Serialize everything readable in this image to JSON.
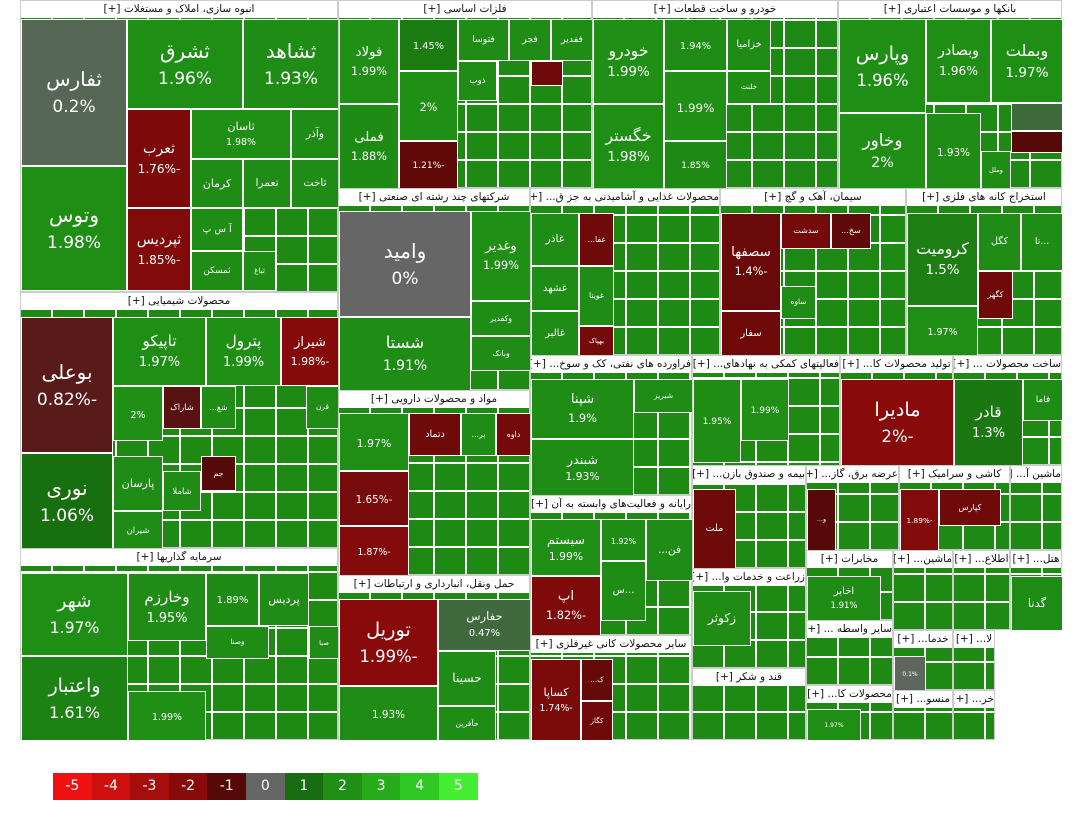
{
  "chart_data": {
    "type": "treemap",
    "legend": {
      "ticks": [
        -5,
        -4,
        -3,
        -2,
        -1,
        0,
        1,
        2,
        3,
        4,
        5
      ],
      "colors": [
        "#ee1111",
        "#cc0f0f",
        "#a80d0d",
        "#880a0a",
        "#560909",
        "#666666",
        "#186d10",
        "#1f8f15",
        "#27aa1b",
        "#30c822",
        "#44ee33"
      ]
    },
    "sectors": [
      {
        "title": "انبوه سازی، املاک و مستغلات [+]",
        "tiles": [
          {
            "name": "ثفارس",
            "value": 0.2,
            "value_label": "0.2%"
          },
          {
            "name": "وتوس",
            "value": 1.98,
            "value_label": "1.98%"
          },
          {
            "name": "ثشرق",
            "value": 1.96,
            "value_label": "1.96%"
          },
          {
            "name": "ثشاهد",
            "value": 1.93,
            "value_label": "1.93%"
          },
          {
            "name": "ثعرب",
            "value": -1.76,
            "value_label": "-1.76%"
          },
          {
            "name": "ثاسان",
            "value": 1.98,
            "value_label": "1.98%"
          },
          {
            "name": "وآذر",
            "value": 1.9
          },
          {
            "name": "کرمان",
            "value": 1.9
          },
          {
            "name": "تعمرا",
            "value": 1.9
          },
          {
            "name": "ثاخت",
            "value": 1.9
          },
          {
            "name": "ثپردیس",
            "value": -1.85,
            "value_label": "-1.85%"
          },
          {
            "name": "آ س پ",
            "value": 1.9
          },
          {
            "name": "ثمسکن",
            "value": 1.9
          },
          {
            "name": "ثباغ",
            "value": 1.9
          }
        ]
      },
      {
        "title": "محصولات شیمیایی [+]",
        "tiles": [
          {
            "name": "بوعلی",
            "value": -0.82,
            "value_label": "-0.82%"
          },
          {
            "name": "نوری",
            "value": 1.06,
            "value_label": "1.06%"
          },
          {
            "name": "تاپیکو",
            "value": 1.97,
            "value_label": "1.97%"
          },
          {
            "name": "پترول",
            "value": 1.99,
            "value_label": "1.99%"
          },
          {
            "name": "شیراز",
            "value": -1.98,
            "value_label": "-1.98%"
          },
          {
            "value": 2,
            "value_label": "2%"
          },
          {
            "name": "شاراک",
            "value": -0.9
          },
          {
            "name": "شغ...",
            "value": 1.9
          },
          {
            "name": "قرن",
            "value": 1.9
          },
          {
            "name": "پارسان",
            "value": 1.9
          },
          {
            "name": "شیران",
            "value": 1.9
          },
          {
            "name": "شاملا",
            "value": 1.9
          },
          {
            "name": "جم",
            "value": -1
          }
        ]
      },
      {
        "title": "سرمایه گذاریها [+]",
        "tiles": [
          {
            "name": "شهر",
            "value": 1.97,
            "value_label": "1.97%"
          },
          {
            "name": "واعتبار",
            "value": 1.61,
            "value_label": "1.61%"
          },
          {
            "name": "وخارزم",
            "value": 1.95,
            "value_label": "1.95%"
          },
          {
            "value": 1.89,
            "value_label": "1.89%"
          },
          {
            "name": "پردیس",
            "value": 1.9
          },
          {
            "name": "وصنا",
            "value": 1.9
          },
          {
            "name": "صبا",
            "value": 1.9
          },
          {
            "value": 1.99,
            "value_label": "1.99%"
          }
        ]
      },
      {
        "title": "فلزات اساسی [+]",
        "tiles": [
          {
            "name": "فولاد",
            "value": 1.99,
            "value_label": "1.99%"
          },
          {
            "name": "فملی",
            "value": 1.88,
            "value_label": "1.88%"
          },
          {
            "value": 1.45,
            "value_label": "1.45%"
          },
          {
            "value": 2,
            "value_label": "2%"
          },
          {
            "value": -1.21,
            "value_label": "-1.21%"
          },
          {
            "name": "فتوسا",
            "value": 1.9
          },
          {
            "name": "فجر",
            "value": 1.9
          },
          {
            "name": "ففدیر",
            "value": 1.9
          },
          {
            "name": "ذوب",
            "value": 1.9
          },
          {
            "value": -1.5
          }
        ]
      },
      {
        "title": "خودرو و ساخت قطعات [+]",
        "tiles": [
          {
            "name": "خودرو",
            "value": 1.99,
            "value_label": "1.99%"
          },
          {
            "name": "خگستر",
            "value": 1.98,
            "value_label": "1.98%"
          },
          {
            "value": 1.94,
            "value_label": "1.94%"
          },
          {
            "value": 1.99,
            "value_label": "1.99%"
          },
          {
            "value": 1.85,
            "value_label": "1.85%"
          },
          {
            "name": "خزامیا",
            "value": 1.9
          },
          {
            "name": "خلنت",
            "value": 1.9
          }
        ]
      },
      {
        "title": "بانکها و موسسات اعتباری [+]",
        "tiles": [
          {
            "name": "وپارس",
            "value": 1.96,
            "value_label": "1.96%"
          },
          {
            "name": "وبصادر",
            "value": 1.96,
            "value_label": "1.96%"
          },
          {
            "name": "وبملت",
            "value": 1.97,
            "value_label": "1.97%"
          },
          {
            "name": "وخاور",
            "value": 2,
            "value_label": "2%"
          },
          {
            "value": 1.93,
            "value_label": "1.93%"
          },
          {
            "name": "وملل",
            "value": 1.9
          },
          {
            "value": 0.5
          },
          {
            "value": -1
          }
        ]
      },
      {
        "title": "شرکتهای چند رشته ای صنعتی [+]",
        "tiles": [
          {
            "name": "وامید",
            "value": 0,
            "value_label": "0%"
          },
          {
            "name": "شستا",
            "value": 1.91,
            "value_label": "1.91%"
          },
          {
            "name": "وغدیر",
            "value": 1.99,
            "value_label": "1.99%"
          },
          {
            "name": "وکفدیر",
            "value": 1.9
          },
          {
            "name": "وبانک",
            "value": 1.9
          }
        ]
      },
      {
        "title": "مواد و محصولات دارویی [+]",
        "tiles": [
          {
            "value": 1.97,
            "value_label": "1.97%"
          },
          {
            "value": -1.65,
            "value_label": "-1.65%"
          },
          {
            "value": -1.87,
            "value_label": "-1.87%"
          },
          {
            "name": "دتماد",
            "value": -1.5
          },
          {
            "name": "بر...",
            "value": 1.9
          },
          {
            "name": "داوه",
            "value": -1.6
          }
        ]
      },
      {
        "title": "حمل ونقل، انبارداری و ارتباطات [+]",
        "tiles": [
          {
            "name": "توریل",
            "value": -1.99,
            "value_label": "-1.99%"
          },
          {
            "value": 1.93,
            "value_label": "1.93%"
          },
          {
            "name": "حفارس",
            "value": 0.47,
            "value_label": "0.47%"
          },
          {
            "name": "حسینا",
            "value": 1.9
          },
          {
            "name": "حآفرین",
            "value": 1.9
          }
        ]
      },
      {
        "title": "محصولات غذایی و آشامیدنی به جز ق... [+]",
        "tiles": [
          {
            "name": "غاذر",
            "value": 1.9
          },
          {
            "name": "غفا...",
            "value": -1.5
          },
          {
            "name": "غشهد",
            "value": 1.9
          },
          {
            "name": "غویتا",
            "value": 1.9
          },
          {
            "name": "غالبر",
            "value": 1.9
          },
          {
            "name": "بهپاک",
            "value": -1.6
          }
        ]
      },
      {
        "title": "سیمان، آهک و گچ [+]",
        "tiles": [
          {
            "name": "سصفها",
            "value": -1.4,
            "value_label": "-1.4%"
          },
          {
            "name": "سفار",
            "value": -1.5
          },
          {
            "name": "سدشت",
            "value": -1.6
          },
          {
            "name": "سخ...",
            "value": -1.2
          },
          {
            "name": "ساوه",
            "value": 1.9
          }
        ]
      },
      {
        "title": "استخراج کانه های فلزی [+]",
        "tiles": [
          {
            "name": "کرومیت",
            "value": 1.5,
            "value_label": "1.5%"
          },
          {
            "value": 1.97,
            "value_label": "1.97%"
          },
          {
            "name": "کگل",
            "value": 1.9
          },
          {
            "name": "...تا",
            "value": 1.9
          },
          {
            "name": "کگهر",
            "value": -1.5
          }
        ]
      },
      {
        "title": "فراورده های نفتی، کک و سوخ... [+]",
        "tiles": [
          {
            "name": "شپنا",
            "value": 1.9,
            "value_label": "1.9%"
          },
          {
            "name": "شبریز",
            "value": 1.9
          },
          {
            "name": "شبندر",
            "value": 1.93,
            "value_label": "1.93%"
          }
        ]
      },
      {
        "title": "فعالیتهای کمکی به نهادهای... [+]",
        "tiles": [
          {
            "value": 1.95,
            "value_label": "1.95%"
          },
          {
            "value": 1.99,
            "value_label": "1.99%"
          }
        ]
      },
      {
        "title": "تولید محصولات کا... [+]",
        "tiles": [
          {
            "name": "مادیرا",
            "value": -2,
            "value_label": "-2%"
          }
        ]
      },
      {
        "title": "ساخت محصولات ... [+]",
        "tiles": [
          {
            "name": "قادر",
            "value": 1.3,
            "value_label": "1.3%"
          },
          {
            "name": "فاما",
            "value": 1.9
          }
        ]
      },
      {
        "title": "رایانه و فعالیت‌های وابسته به آن [+]",
        "tiles": [
          {
            "name": "سیستم",
            "value": 1.99,
            "value_label": "1.99%"
          },
          {
            "value": 1.92,
            "value_label": "1.92%"
          },
          {
            "name": "فن...",
            "value": 1.9
          },
          {
            "name": "اپ",
            "value": -1.82,
            "value_label": "-1.82%"
          },
          {
            "name": "...س",
            "value": 1.9
          }
        ]
      },
      {
        "title": "بیمه و صندوق بازن... [+]",
        "tiles": [
          {
            "name": "ملت",
            "value": -1.5
          }
        ]
      },
      {
        "title": "عرضه برق، گاز... [+]",
        "tiles": [
          {
            "name": "و...",
            "value": -1
          }
        ]
      },
      {
        "title": "کاشی و سرامیک [+]",
        "tiles": [
          {
            "name": "کپارس",
            "value": -1.5
          },
          {
            "value": -1.89,
            "value_label": "-1.89%"
          }
        ]
      },
      {
        "title": "ماشین آ... [+]",
        "tiles": []
      },
      {
        "title": "زراعت و خدمات وا... [+]",
        "tiles": [
          {
            "name": "زکوثر",
            "value": 1.9
          }
        ]
      },
      {
        "title": "سایر محصولات کانی غیرفلزی [+]",
        "tiles": [
          {
            "name": "کساپا",
            "value": -1.74,
            "value_label": "-1.74%"
          },
          {
            "name": "کگاز",
            "value": -1.5
          },
          {
            "name": "ک...",
            "value": -1.3
          }
        ]
      },
      {
        "title": "قند و شکر [+]",
        "tiles": []
      },
      {
        "title": "مخابرات [+]",
        "tiles": [
          {
            "name": "اخابر",
            "value": 1.91,
            "value_label": "1.91%"
          }
        ]
      },
      {
        "title": "سایر واسطه ... [+]",
        "tiles": []
      },
      {
        "title": "محصولات کا... [+]",
        "tiles": [
          {
            "value": 1.97,
            "value_label": "1.97%"
          }
        ]
      },
      {
        "title": "ماشین... [+]",
        "tiles": []
      },
      {
        "title": "اطلاع... [+]",
        "tiles": []
      },
      {
        "title": "هتل... [+]",
        "tiles": [
          {
            "name": "گدنا",
            "value": 1.9
          }
        ]
      },
      {
        "title": "خدما... [+]",
        "tiles": [
          {
            "value": 0.1,
            "value_label": "0.1%"
          }
        ]
      },
      {
        "title": "منسو... [+]",
        "tiles": []
      },
      {
        "title": "لا... [+]",
        "tiles": []
      },
      {
        "title": "خر... [+]",
        "tiles": []
      }
    ]
  }
}
